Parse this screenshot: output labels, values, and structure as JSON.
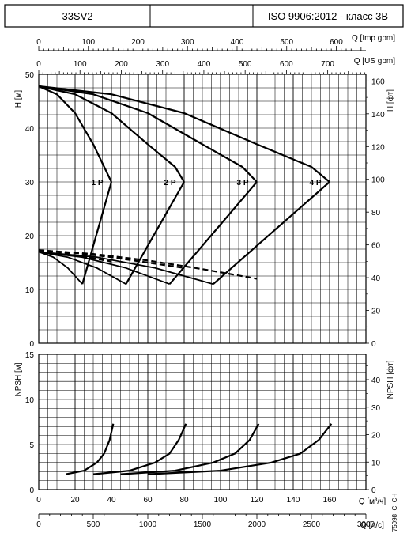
{
  "header": {
    "model": "33SV2",
    "standard": "ISO 9906:2012 - класс 3B"
  },
  "chart_data": [
    {
      "type": "line",
      "name": "H-Q",
      "x_label": "Q [м³/ч]",
      "xlim": [
        0,
        180
      ],
      "ylim": [
        0,
        50
      ],
      "y_label_left": "H [м]",
      "y_label_right": "H [фт]",
      "yticks_left": [
        "0",
        "10",
        "20",
        "30",
        "40",
        "50"
      ],
      "yticks_right": [
        "0",
        "20",
        "40",
        "60",
        "80",
        "100",
        "120",
        "140",
        "160"
      ],
      "top_axes": [
        {
          "label": "Q [Imp gpm]",
          "ticks": [
            "0",
            "100",
            "200",
            "300",
            "400",
            "500",
            "600"
          ],
          "values": [
            0,
            100,
            200,
            300,
            400,
            500,
            600
          ],
          "m3h_per_unit": 0.2728
        },
        {
          "label": "Q [US gpm]",
          "ticks": [
            "0",
            "100",
            "200",
            "300",
            "400",
            "500",
            "600",
            "700"
          ],
          "values": [
            0,
            100,
            200,
            300,
            400,
            500,
            600,
            700
          ],
          "m3h_per_unit": 0.2271
        }
      ],
      "grid": true,
      "series": [
        {
          "name": "1 P",
          "x": [
            0,
            10,
            20,
            30,
            36,
            40
          ],
          "y": [
            47.8,
            46.3,
            42.8,
            37.0,
            32.8,
            30.0
          ]
        },
        {
          "name": "2 P",
          "x": [
            0,
            20,
            40,
            60,
            75,
            80
          ],
          "y": [
            47.8,
            46.3,
            42.8,
            37.0,
            32.8,
            30.0
          ]
        },
        {
          "name": "3 P",
          "x": [
            0,
            30,
            60,
            90,
            112,
            120
          ],
          "y": [
            47.8,
            46.3,
            42.8,
            37.0,
            32.8,
            30.0
          ]
        },
        {
          "name": "4 P",
          "x": [
            0,
            40,
            80,
            120,
            150,
            160
          ],
          "y": [
            47.8,
            46.3,
            42.8,
            37.0,
            32.8,
            30.0
          ]
        }
      ],
      "annotations": [
        "1 P",
        "2 P",
        "3 P",
        "4 P"
      ],
      "system_curves": [
        {
          "x": [
            24,
            32,
            40
          ],
          "y": [
            11.0,
            20.5,
            30.0
          ]
        },
        {
          "x": [
            48,
            64,
            80
          ],
          "y": [
            11.0,
            20.5,
            30.0
          ]
        },
        {
          "x": [
            72,
            96,
            120
          ],
          "y": [
            11.0,
            20.5,
            30.0
          ]
        },
        {
          "x": [
            96,
            128,
            160
          ],
          "y": [
            11.0,
            20.5,
            30.0
          ]
        }
      ],
      "min_flow_curves": [
        {
          "x": [
            0,
            8,
            16,
            24
          ],
          "y": [
            17.0,
            16.0,
            14.0,
            11.0
          ]
        },
        {
          "x": [
            0,
            16,
            32,
            48
          ],
          "y": [
            17.0,
            16.0,
            14.0,
            11.0
          ]
        },
        {
          "x": [
            0,
            24,
            48,
            72
          ],
          "y": [
            17.0,
            16.0,
            14.0,
            11.0
          ]
        },
        {
          "x": [
            0,
            32,
            64,
            96
          ],
          "y": [
            17.0,
            16.0,
            14.0,
            11.0
          ]
        }
      ],
      "efficiency_curves_dashed": [
        {
          "x": [
            0,
            10,
            20,
            30,
            40
          ],
          "y": [
            17.3,
            17.0,
            16.4,
            15.8,
            15.2
          ]
        },
        {
          "x": [
            0,
            20,
            40,
            60,
            80
          ],
          "y": [
            17.3,
            16.8,
            16.0,
            15.0,
            14.0
          ]
        },
        {
          "x": [
            0,
            30,
            60,
            90,
            120
          ],
          "y": [
            17.3,
            16.6,
            15.4,
            13.8,
            12.0
          ]
        }
      ]
    },
    {
      "type": "line",
      "name": "NPSH-Q",
      "x_label": "Q [м³/ч]",
      "xlim": [
        0,
        180
      ],
      "ylim": [
        0,
        15
      ],
      "y_label_left": "NPSH [м]",
      "y_label_right": "NPSH [фт]",
      "yticks_left": [
        "0",
        "5",
        "10",
        "15"
      ],
      "yticks_right": [
        "0",
        "10",
        "20",
        "30",
        "40"
      ],
      "xticks": [
        "0",
        "20",
        "40",
        "60",
        "80",
        "100",
        "120",
        "140",
        "160"
      ],
      "bottom_axis": {
        "label": "Q [л/с]",
        "ticks": [
          "0",
          "500",
          "1000",
          "1500",
          "2000",
          "2500",
          "3000"
        ],
        "values": [
          0,
          500,
          1000,
          1500,
          2000,
          2500,
          3000
        ],
        "m3h_per_unit": 0.06
      },
      "code": "75098_C_CH",
      "grid": true,
      "series": [
        {
          "name": "1 P",
          "x": [
            15,
            25,
            32,
            36,
            39,
            41
          ],
          "y": [
            1.7,
            2.1,
            3.0,
            4.0,
            5.5,
            7.3
          ]
        },
        {
          "name": "2 P",
          "x": [
            30,
            50,
            64,
            72,
            77,
            81
          ],
          "y": [
            1.7,
            2.1,
            3.0,
            4.0,
            5.5,
            7.3
          ]
        },
        {
          "name": "3 P",
          "x": [
            45,
            75,
            96,
            108,
            116,
            121
          ],
          "y": [
            1.7,
            2.1,
            3.0,
            4.0,
            5.5,
            7.3
          ]
        },
        {
          "name": "4 P",
          "x": [
            60,
            100,
            128,
            144,
            154,
            161
          ],
          "y": [
            1.7,
            2.1,
            3.0,
            4.0,
            5.5,
            7.3
          ]
        }
      ]
    }
  ]
}
